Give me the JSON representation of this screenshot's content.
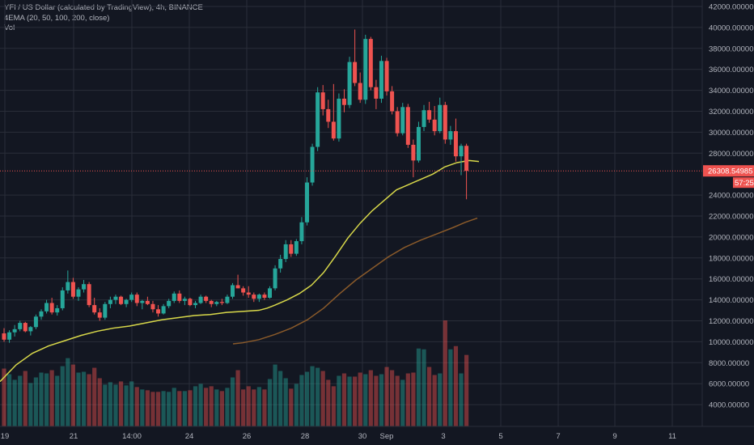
{
  "legend": {
    "symbol_line": "YFI / US Dollar (calculated by TradingView), 4h, BINANCE",
    "indicator_line": "4EMA (20, 50, 100, 200, close)",
    "volume_line": "Vol"
  },
  "price_axis": {
    "ticks": [
      "42000.00000",
      "40000.00000",
      "38000.00000",
      "36000.00000",
      "34000.00000",
      "32000.00000",
      "30000.00000",
      "28000.00000",
      "24000.00000",
      "22000.00000",
      "20000.00000",
      "18000.00000",
      "16000.00000",
      "14000.00000",
      "12000.00000",
      "10000.00000",
      "8000.00000",
      "6000.00000",
      "4000.00000"
    ],
    "last_price": "26308.54985",
    "countdown": "57:25"
  },
  "time_axis": {
    "ticks": [
      "19",
      "21",
      "14:00",
      "24",
      "26",
      "28",
      "30",
      "Sep",
      "3",
      "5",
      "7",
      "9",
      "11"
    ]
  },
  "colors": {
    "background": "#131722",
    "up": "#26a69a",
    "down": "#ef5350",
    "ema_fast": "#d8d84a",
    "ema_slow": "#8a5a2a",
    "grid": "#2a2e39"
  },
  "chart_data": {
    "type": "candlestick",
    "interval": "4h",
    "ylim": [
      3000,
      43000
    ],
    "price_ticks": [
      42000,
      40000,
      38000,
      36000,
      34000,
      32000,
      30000,
      28000,
      24000,
      22000,
      20000,
      18000,
      16000,
      14000,
      12000,
      10000,
      8000,
      6000,
      4000
    ],
    "date_ticks": [
      "19",
      "21",
      "14:00",
      "24",
      "26",
      "28",
      "30",
      "Sep",
      "3",
      "5",
      "7",
      "9",
      "11"
    ],
    "last_price": 26308.54985,
    "ohlc": [
      [
        10800,
        11300,
        10000,
        10200
      ],
      [
        10200,
        11100,
        9900,
        10900
      ],
      [
        10900,
        11600,
        10500,
        11200
      ],
      [
        11200,
        12000,
        11000,
        11800
      ],
      [
        11800,
        11900,
        10900,
        11000
      ],
      [
        11000,
        11500,
        10600,
        11400
      ],
      [
        11400,
        12600,
        11200,
        12400
      ],
      [
        12400,
        13100,
        12100,
        12900
      ],
      [
        12900,
        14000,
        12700,
        13700
      ],
      [
        13700,
        14200,
        12600,
        12800
      ],
      [
        12800,
        13500,
        12500,
        13200
      ],
      [
        13200,
        15200,
        13000,
        14900
      ],
      [
        14900,
        16800,
        14600,
        15700
      ],
      [
        15700,
        16100,
        14100,
        14300
      ],
      [
        14300,
        15200,
        13900,
        15000
      ],
      [
        15000,
        15900,
        14700,
        15500
      ],
      [
        15500,
        15700,
        13300,
        13500
      ],
      [
        13500,
        14200,
        12600,
        12800
      ],
      [
        12800,
        13200,
        12000,
        12300
      ],
      [
        12300,
        13800,
        12100,
        13600
      ],
      [
        13600,
        14300,
        13200,
        14000
      ],
      [
        14000,
        14500,
        13600,
        14300
      ],
      [
        14300,
        14400,
        13500,
        13600
      ],
      [
        13600,
        14100,
        13300,
        14000
      ],
      [
        14000,
        14700,
        13800,
        14500
      ],
      [
        14500,
        14700,
        13400,
        13700
      ],
      [
        13700,
        14000,
        13100,
        13900
      ],
      [
        13900,
        14300,
        13500,
        13600
      ],
      [
        13600,
        13900,
        12800,
        13100
      ],
      [
        13100,
        13500,
        12400,
        12700
      ],
      [
        12700,
        13600,
        12600,
        13400
      ],
      [
        13400,
        14100,
        13200,
        13900
      ],
      [
        13900,
        14800,
        13700,
        14600
      ],
      [
        14600,
        14900,
        13700,
        13900
      ],
      [
        13900,
        14300,
        13500,
        14100
      ],
      [
        14100,
        14200,
        13400,
        13500
      ],
      [
        13500,
        13900,
        13200,
        13700
      ],
      [
        13700,
        14500,
        13600,
        14300
      ],
      [
        14300,
        14400,
        13700,
        13900
      ],
      [
        13900,
        14000,
        13300,
        13600
      ],
      [
        13600,
        13900,
        13400,
        13800
      ],
      [
        13800,
        14100,
        13500,
        13700
      ],
      [
        13700,
        14500,
        13600,
        14300
      ],
      [
        14300,
        15600,
        14100,
        15400
      ],
      [
        15400,
        16400,
        15100,
        15100
      ],
      [
        15100,
        15300,
        14400,
        14700
      ],
      [
        14700,
        15300,
        14200,
        14500
      ],
      [
        14500,
        14700,
        13800,
        14100
      ],
      [
        14100,
        14600,
        13800,
        14500
      ],
      [
        14500,
        14700,
        14000,
        14200
      ],
      [
        14200,
        15300,
        14100,
        15100
      ],
      [
        15100,
        17300,
        14900,
        17000
      ],
      [
        17000,
        18300,
        16600,
        17900
      ],
      [
        17900,
        19700,
        17600,
        19300
      ],
      [
        19300,
        19700,
        18100,
        18400
      ],
      [
        18400,
        19800,
        18200,
        19600
      ],
      [
        19600,
        21900,
        19300,
        21400
      ],
      [
        21400,
        25700,
        21100,
        25200
      ],
      [
        25200,
        28900,
        24900,
        28600
      ],
      [
        28600,
        34300,
        28200,
        33800
      ],
      [
        33800,
        34500,
        31600,
        32200
      ],
      [
        32200,
        33100,
        30400,
        31000
      ],
      [
        31000,
        34600,
        29200,
        29400
      ],
      [
        29400,
        33700,
        29100,
        33200
      ],
      [
        33200,
        34100,
        31900,
        32600
      ],
      [
        32600,
        37200,
        32300,
        36700
      ],
      [
        36700,
        39800,
        34400,
        34700
      ],
      [
        34700,
        35700,
        32800,
        33100
      ],
      [
        33100,
        39300,
        32700,
        38900
      ],
      [
        38900,
        39100,
        34000,
        34300
      ],
      [
        34300,
        35000,
        32200,
        33200
      ],
      [
        33200,
        37300,
        32800,
        36800
      ],
      [
        36800,
        37100,
        33500,
        33900
      ],
      [
        33900,
        34400,
        31700,
        32000
      ],
      [
        32000,
        32400,
        29600,
        29900
      ],
      [
        29900,
        32800,
        29700,
        32400
      ],
      [
        32400,
        32700,
        28500,
        28800
      ],
      [
        28800,
        29300,
        25700,
        27300
      ],
      [
        27300,
        31000,
        27100,
        30500
      ],
      [
        30500,
        32600,
        30100,
        32100
      ],
      [
        32100,
        32900,
        30900,
        31200
      ],
      [
        31200,
        32500,
        29700,
        30100
      ],
      [
        30100,
        33300,
        29900,
        32600
      ],
      [
        32600,
        32900,
        28900,
        29300
      ],
      [
        29300,
        30600,
        28800,
        30100
      ],
      [
        30100,
        31300,
        27200,
        27700
      ],
      [
        27700,
        28900,
        25900,
        28700
      ],
      [
        28700,
        28900,
        23600,
        26308
      ]
    ],
    "volume": [
      7200,
      6500,
      5800,
      6300,
      6900,
      5400,
      6100,
      6700,
      6600,
      7000,
      6300,
      7500,
      8500,
      7700,
      6700,
      6800,
      6500,
      7300,
      6000,
      5200,
      5500,
      5200,
      5600,
      5100,
      5600,
      4900,
      4600,
      4500,
      4300,
      4300,
      4400,
      4300,
      4800,
      4400,
      4400,
      4500,
      5000,
      5300,
      4800,
      5000,
      4600,
      4400,
      4800,
      6100,
      7000,
      4600,
      5000,
      4600,
      4900,
      4600,
      5900,
      7700,
      6900,
      6000,
      4700,
      5300,
      6400,
      6800,
      7500,
      7300,
      6900,
      5800,
      5000,
      6300,
      6600,
      6200,
      6200,
      6700,
      6500,
      7000,
      6300,
      6500,
      7400,
      7000,
      6300,
      5800,
      6600,
      6700,
      9700,
      9600,
      7400,
      6400,
      6600,
      13200,
      9600,
      10000,
      6600,
      8900
    ],
    "ema_20": [
      [
        0,
        6200
      ],
      [
        20,
        7800
      ],
      [
        40,
        8900
      ],
      [
        60,
        9600
      ],
      [
        80,
        10100
      ],
      [
        100,
        10600
      ],
      [
        120,
        11000
      ],
      [
        140,
        11300
      ],
      [
        160,
        11500
      ],
      [
        180,
        11800
      ],
      [
        200,
        12100
      ],
      [
        220,
        12300
      ],
      [
        240,
        12500
      ],
      [
        260,
        12600
      ],
      [
        280,
        12800
      ],
      [
        300,
        12900
      ],
      [
        320,
        13000
      ],
      [
        330,
        13200
      ],
      [
        340,
        13500
      ],
      [
        355,
        14000
      ],
      [
        370,
        14600
      ],
      [
        385,
        15400
      ],
      [
        400,
        16600
      ],
      [
        415,
        18200
      ],
      [
        430,
        19900
      ],
      [
        445,
        21300
      ],
      [
        460,
        22500
      ],
      [
        475,
        23500
      ],
      [
        490,
        24500
      ],
      [
        505,
        25000
      ],
      [
        520,
        25500
      ],
      [
        535,
        26000
      ],
      [
        550,
        26700
      ],
      [
        565,
        27100
      ],
      [
        580,
        27300
      ],
      [
        592,
        27200
      ]
    ],
    "ema_200": [
      [
        288,
        9800
      ],
      [
        300,
        9900
      ],
      [
        320,
        10200
      ],
      [
        340,
        10700
      ],
      [
        360,
        11300
      ],
      [
        380,
        12100
      ],
      [
        400,
        13200
      ],
      [
        420,
        14600
      ],
      [
        440,
        15900
      ],
      [
        460,
        17000
      ],
      [
        480,
        18100
      ],
      [
        500,
        19000
      ],
      [
        520,
        19700
      ],
      [
        540,
        20300
      ],
      [
        560,
        20900
      ],
      [
        575,
        21400
      ],
      [
        590,
        21800
      ]
    ]
  }
}
